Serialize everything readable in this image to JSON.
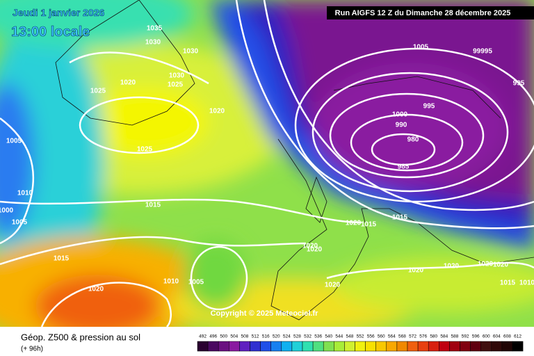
{
  "header": {
    "date": "Jeudi 1 janvier 2026",
    "time": "13:00 locale",
    "run": "Run AIGFS 12 Z du Dimanche 28 décembre 2025"
  },
  "isobar_labels": [
    "1035",
    "1030",
    "1030",
    "1030",
    "1025",
    "1020",
    "1025",
    "1020",
    "1025",
    "1005",
    "1010",
    "1000",
    "1005",
    "1015",
    "1015",
    "1020",
    "1010",
    "1005",
    "1020",
    "1020",
    "1020",
    "1020",
    "1015",
    "1015",
    "1020",
    "1020",
    "1020",
    "1015",
    "1020",
    "1010",
    "1005",
    "99995",
    "995",
    "1000",
    "995",
    "990",
    "980",
    "985"
  ],
  "copyright": "Copyright © 2025 Meteociel.fr",
  "legend": {
    "title": "Géop. Z500 & pression au sol",
    "lead": "(+ 96h)",
    "scale": [
      492,
      496,
      500,
      504,
      508,
      512,
      516,
      520,
      524,
      528,
      532,
      536,
      540,
      544,
      548,
      552,
      556,
      560,
      564,
      568,
      572,
      576,
      580,
      584,
      588,
      592,
      596,
      600,
      604,
      608,
      612
    ]
  }
}
